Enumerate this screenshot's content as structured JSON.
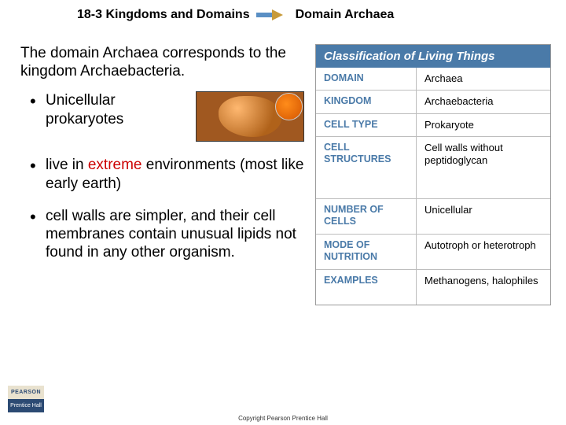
{
  "header": {
    "section": "18-3 Kingdoms and Domains",
    "title": "Domain Archaea",
    "arrow_color_left": "#5a8fc4",
    "arrow_color_right": "#c79a3a"
  },
  "intro": "The domain Archaea corresponds to the kingdom Archaebacteria.",
  "bullets": [
    {
      "plain": "Unicellular prokaryotes",
      "has_image": true
    },
    {
      "pre": "live in ",
      "hl": "extreme",
      "post": " environments (most like early earth)"
    },
    {
      "plain": "cell walls are simpler, and their cell membranes contain unusual lipids not found in any other organism."
    }
  ],
  "table": {
    "title": "Classification of Living Things",
    "header_bg": "#4a7aa8",
    "label_color": "#4a7aa8",
    "rows": [
      {
        "label": "DOMAIN",
        "value": "Archaea",
        "h": "short"
      },
      {
        "label": "KINGDOM",
        "value": "Archaebacteria",
        "h": "short"
      },
      {
        "label": "CELL TYPE",
        "value": "Prokaryote",
        "h": "short"
      },
      {
        "label": "CELL STRUCTURES",
        "value": "Cell walls without peptidoglycan",
        "h": "tall"
      },
      {
        "label": "NUMBER OF CELLS",
        "value": "Unicellular",
        "h": "mid"
      },
      {
        "label": "MODE OF NUTRITION",
        "value": "Autotroph or heterotroph",
        "h": "mid"
      },
      {
        "label": "EXAMPLES",
        "value": "Methanogens, halophiles",
        "h": "mid"
      }
    ]
  },
  "logo": {
    "top": "PEARSON",
    "bottom": "Prentice Hall"
  },
  "copyright": "Copyright Pearson Prentice Hall",
  "highlight_color": "#cc0000"
}
